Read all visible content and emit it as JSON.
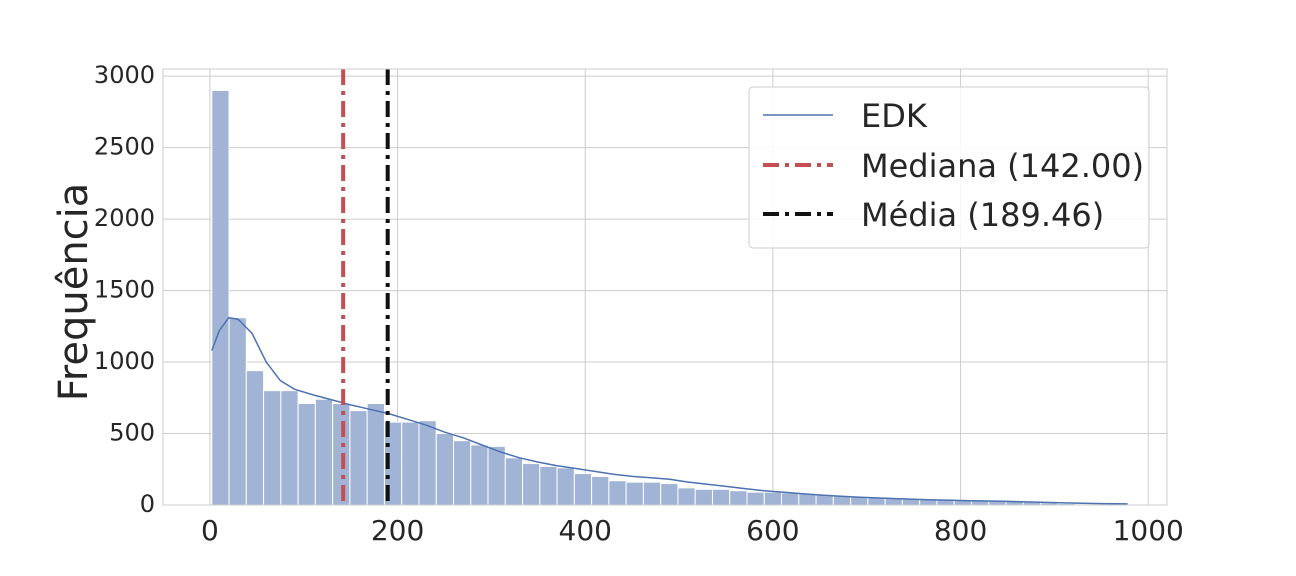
{
  "chart_data": {
    "type": "bar",
    "title": "",
    "xlabel": "",
    "ylabel": "Frequência",
    "xlim": [
      -50,
      1020
    ],
    "ylim": [
      0,
      3050
    ],
    "xticks": [
      0,
      200,
      400,
      600,
      800,
      1000
    ],
    "yticks": [
      0,
      500,
      1000,
      1500,
      2000,
      2500,
      3000
    ],
    "grid": true,
    "legend_position": "top-right",
    "bin_width": 18.4,
    "bin_start": 2,
    "bars": [
      2900,
      1310,
      940,
      800,
      800,
      710,
      740,
      710,
      660,
      710,
      580,
      580,
      590,
      500,
      450,
      420,
      410,
      330,
      290,
      270,
      260,
      220,
      200,
      170,
      160,
      160,
      150,
      120,
      110,
      110,
      100,
      90,
      90,
      85,
      80,
      70,
      65,
      60,
      55,
      50,
      45,
      40,
      35,
      32,
      30,
      28,
      25,
      20,
      15,
      10
    ],
    "kde": {
      "name": "EDK",
      "color": "#4c72b0",
      "points": [
        [
          2,
          1080
        ],
        [
          10,
          1220
        ],
        [
          20,
          1310
        ],
        [
          30,
          1300
        ],
        [
          45,
          1200
        ],
        [
          60,
          1000
        ],
        [
          75,
          870
        ],
        [
          90,
          810
        ],
        [
          110,
          770
        ],
        [
          130,
          735
        ],
        [
          150,
          700
        ],
        [
          170,
          670
        ],
        [
          190,
          640
        ],
        [
          210,
          600
        ],
        [
          230,
          560
        ],
        [
          250,
          510
        ],
        [
          270,
          470
        ],
        [
          290,
          420
        ],
        [
          310,
          370
        ],
        [
          330,
          330
        ],
        [
          350,
          300
        ],
        [
          370,
          275
        ],
        [
          390,
          255
        ],
        [
          410,
          235
        ],
        [
          430,
          215
        ],
        [
          450,
          200
        ],
        [
          470,
          190
        ],
        [
          490,
          180
        ],
        [
          510,
          160
        ],
        [
          530,
          145
        ],
        [
          550,
          130
        ],
        [
          570,
          115
        ],
        [
          590,
          100
        ],
        [
          610,
          90
        ],
        [
          630,
          80
        ],
        [
          650,
          70
        ],
        [
          670,
          62
        ],
        [
          690,
          55
        ],
        [
          710,
          50
        ],
        [
          730,
          45
        ],
        [
          750,
          40
        ],
        [
          770,
          36
        ],
        [
          790,
          33
        ],
        [
          810,
          30
        ],
        [
          830,
          28
        ],
        [
          850,
          25
        ],
        [
          870,
          22
        ],
        [
          890,
          18
        ],
        [
          910,
          15
        ],
        [
          930,
          12
        ],
        [
          950,
          10
        ],
        [
          978,
          8
        ]
      ]
    },
    "vlines": [
      {
        "name": "Mediana (142.00)",
        "x": 142,
        "color": "#c44e52",
        "style": "dashdot"
      },
      {
        "name": "Média (189.46)",
        "x": 189.46,
        "color": "#111111",
        "style": "dashdot"
      }
    ],
    "bar_color": "#a1b4d6"
  }
}
